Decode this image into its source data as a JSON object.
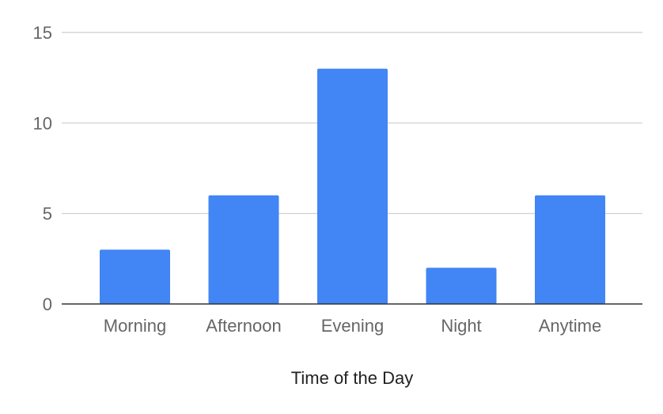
{
  "chart_data": {
    "type": "bar",
    "title": "",
    "xlabel": "Time of the Day",
    "ylabel": "",
    "categories": [
      "Morning",
      "Afternoon",
      "Evening",
      "Night",
      "Anytime"
    ],
    "values": [
      3,
      6,
      13,
      2,
      6
    ],
    "ylim": [
      0,
      15
    ],
    "yticks": [
      0,
      5,
      10,
      15
    ],
    "grid": true,
    "legend": "none",
    "bar_color": "#4285f4"
  }
}
